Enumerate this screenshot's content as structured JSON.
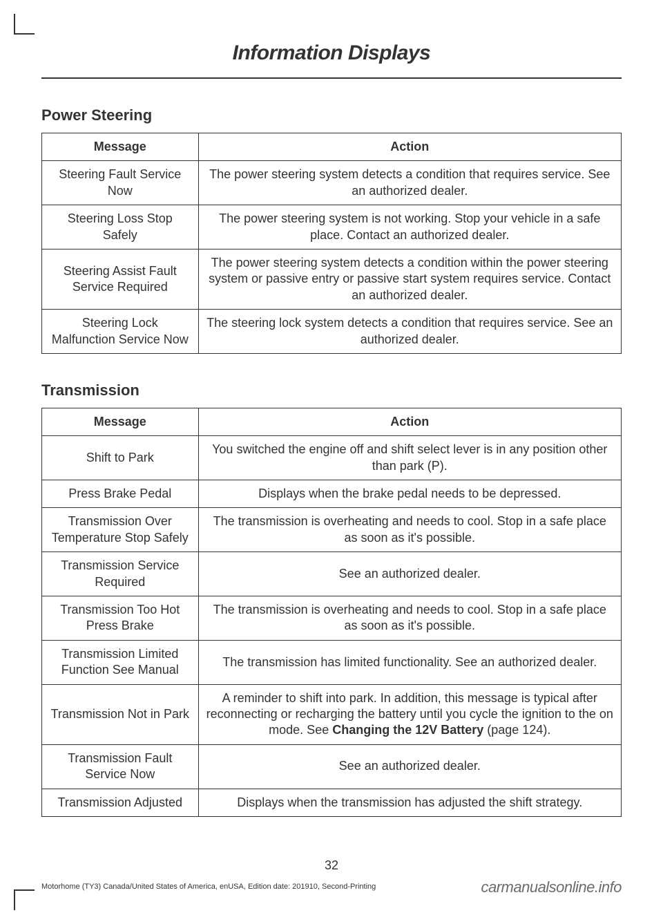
{
  "chapter_title": "Information Displays",
  "sections": [
    {
      "title": "Power Steering",
      "headers": {
        "message": "Message",
        "action": "Action"
      },
      "rows": [
        {
          "message": "Steering Fault Service Now",
          "action_parts": [
            {
              "t": "The power steering system detects a condition that requires service. See an authorized dealer."
            }
          ]
        },
        {
          "message": "Steering Loss Stop Safely",
          "action_parts": [
            {
              "t": "The power steering system is not working.  Stop your vehicle in a safe place.  Contact an authorized dealer."
            }
          ]
        },
        {
          "message": "Steering Assist Fault Service Required",
          "action_parts": [
            {
              "t": "The power steering system detects a condition within the power steering system or passive entry or passive start system requires service. Contact an authorized dealer."
            }
          ]
        },
        {
          "message": "Steering Lock Malfunction Service Now",
          "action_parts": [
            {
              "t": "The steering lock system detects a condition that requires service. See an authorized dealer."
            }
          ]
        }
      ]
    },
    {
      "title": "Transmission",
      "headers": {
        "message": "Message",
        "action": "Action"
      },
      "rows": [
        {
          "message": "Shift to Park",
          "action_parts": [
            {
              "t": "You switched the engine off and shift select lever is in any position other than park (P)."
            }
          ]
        },
        {
          "message": "Press Brake Pedal",
          "action_parts": [
            {
              "t": "Displays when the brake pedal needs to be depressed."
            }
          ]
        },
        {
          "message": "Transmission Over Temperature Stop Safely",
          "action_parts": [
            {
              "t": "The transmission is overheating and needs to cool.  Stop in a safe place as soon as it's possible."
            }
          ]
        },
        {
          "message": "Transmission Service Required",
          "action_parts": [
            {
              "t": "See an authorized dealer."
            }
          ]
        },
        {
          "message": "Transmission Too Hot Press Brake",
          "action_parts": [
            {
              "t": "The transmission is overheating and needs to cool.  Stop in a safe place as soon as it's possible."
            }
          ]
        },
        {
          "message": "Transmission Limited Function See Manual",
          "action_parts": [
            {
              "t": "The transmission has limited functionality.  See an authorized dealer."
            }
          ]
        },
        {
          "message": "Transmission Not in Park",
          "action_parts": [
            {
              "t": "A reminder to shift into park. In addition, this message is typical after reconnecting or recharging the battery until you cycle the ignition to the on mode.  See "
            },
            {
              "t": "Changing the 12V Battery",
              "bold": true
            },
            {
              "t": " (page 124)."
            }
          ]
        },
        {
          "message": "Transmission Fault Service Now",
          "action_parts": [
            {
              "t": "See an authorized dealer."
            }
          ]
        },
        {
          "message": "Transmission Adjusted",
          "action_parts": [
            {
              "t": "Displays when the transmission has adjusted the shift strategy."
            }
          ]
        }
      ]
    }
  ],
  "page_number": "32",
  "footer_left": "Motorhome (TY3) Canada/United States of America, enUSA, Edition date: 201910, Second-Printing",
  "footer_right": "carmanualsonline.info"
}
